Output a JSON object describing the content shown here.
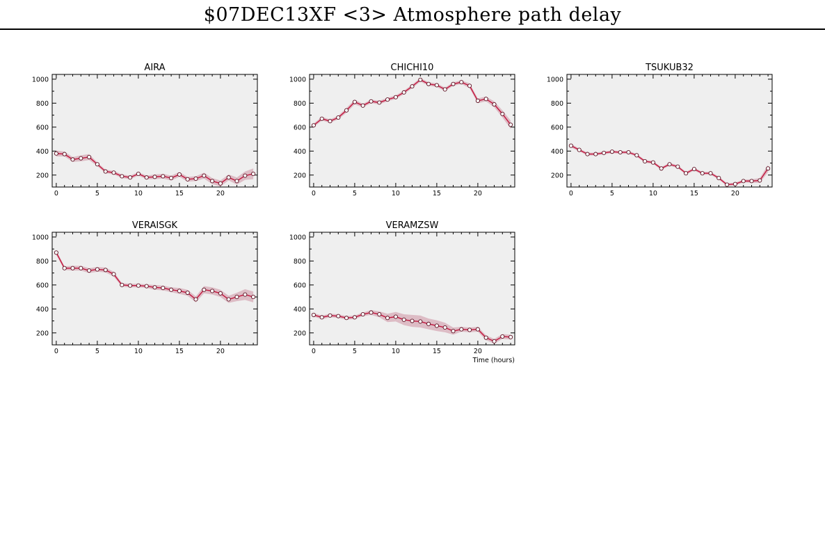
{
  "page": {
    "title": "$07DEC13XF <3>  Atmosphere path delay"
  },
  "chart_data": [
    {
      "type": "line",
      "title": "AIRA",
      "xlabel": "",
      "ylabel": "",
      "xlim": [
        -0.5,
        24.5
      ],
      "ylim": [
        100,
        1040
      ],
      "xticks": [
        0,
        5,
        10,
        15,
        20
      ],
      "yticks": [
        200,
        400,
        600,
        800,
        1000
      ],
      "series": [
        {
          "x": [
            0,
            1,
            2,
            3,
            4,
            5,
            6,
            7,
            8,
            9,
            10,
            11,
            12,
            13,
            14,
            15,
            16,
            17,
            18,
            19,
            20,
            21,
            22,
            23,
            24
          ],
          "values": [
            380,
            375,
            330,
            340,
            350,
            290,
            230,
            220,
            190,
            180,
            210,
            180,
            185,
            190,
            175,
            205,
            165,
            170,
            195,
            150,
            130,
            180,
            150,
            195,
            210
          ],
          "band": [
            25,
            20,
            20,
            25,
            25,
            15,
            15,
            15,
            15,
            15,
            15,
            15,
            20,
            20,
            20,
            20,
            20,
            20,
            25,
            25,
            25,
            25,
            30,
            35,
            45
          ]
        }
      ]
    },
    {
      "type": "line",
      "title": "CHICHI10",
      "xlabel": "",
      "ylabel": "",
      "xlim": [
        -0.5,
        24.5
      ],
      "ylim": [
        100,
        1040
      ],
      "xticks": [
        0,
        5,
        10,
        15,
        20
      ],
      "yticks": [
        200,
        400,
        600,
        800,
        1000
      ],
      "series": [
        {
          "x": [
            0,
            1,
            2,
            3,
            4,
            5,
            6,
            7,
            8,
            9,
            10,
            11,
            12,
            13,
            14,
            15,
            16,
            17,
            18,
            19,
            20,
            21,
            22,
            23,
            24
          ],
          "values": [
            615,
            670,
            650,
            680,
            740,
            810,
            780,
            815,
            805,
            830,
            850,
            890,
            940,
            995,
            960,
            950,
            915,
            960,
            975,
            945,
            820,
            835,
            790,
            710,
            620
          ],
          "band": [
            15,
            15,
            15,
            15,
            20,
            20,
            15,
            15,
            15,
            15,
            15,
            15,
            15,
            15,
            15,
            15,
            15,
            15,
            15,
            20,
            20,
            20,
            25,
            30,
            35
          ]
        }
      ]
    },
    {
      "type": "line",
      "title": "TSUKUB32",
      "xlabel": "",
      "ylabel": "",
      "xlim": [
        -0.5,
        24.5
      ],
      "ylim": [
        100,
        1040
      ],
      "xticks": [
        0,
        5,
        10,
        15,
        20
      ],
      "yticks": [
        200,
        400,
        600,
        800,
        1000
      ],
      "series": [
        {
          "x": [
            0,
            1,
            2,
            3,
            4,
            5,
            6,
            7,
            8,
            9,
            10,
            11,
            12,
            13,
            14,
            15,
            16,
            17,
            18,
            19,
            20,
            21,
            22,
            23,
            24
          ],
          "values": [
            445,
            410,
            375,
            375,
            385,
            395,
            390,
            390,
            365,
            315,
            305,
            255,
            290,
            270,
            215,
            250,
            215,
            215,
            175,
            120,
            125,
            150,
            150,
            155,
            255
          ],
          "band": [
            15,
            12,
            12,
            12,
            12,
            12,
            12,
            12,
            12,
            12,
            12,
            12,
            12,
            12,
            12,
            12,
            12,
            12,
            12,
            12,
            12,
            12,
            15,
            20,
            30
          ]
        }
      ]
    },
    {
      "type": "line",
      "title": "VERAISGK",
      "xlabel": "",
      "ylabel": "",
      "xlim": [
        -0.5,
        24.5
      ],
      "ylim": [
        100,
        1040
      ],
      "xticks": [
        0,
        5,
        10,
        15,
        20
      ],
      "yticks": [
        200,
        400,
        600,
        800,
        1000
      ],
      "series": [
        {
          "x": [
            0,
            1,
            2,
            3,
            4,
            5,
            6,
            7,
            8,
            9,
            10,
            11,
            12,
            13,
            14,
            15,
            16,
            17,
            18,
            19,
            20,
            21,
            22,
            23,
            24
          ],
          "values": [
            870,
            740,
            740,
            740,
            720,
            730,
            725,
            690,
            600,
            595,
            595,
            590,
            580,
            575,
            560,
            550,
            535,
            480,
            560,
            550,
            530,
            480,
            500,
            520,
            500
          ],
          "band": [
            20,
            15,
            20,
            20,
            20,
            20,
            20,
            20,
            15,
            15,
            15,
            15,
            20,
            20,
            20,
            25,
            25,
            25,
            30,
            30,
            30,
            30,
            35,
            45,
            45
          ]
        }
      ]
    },
    {
      "type": "line",
      "title": "VERAMZSW",
      "xlabel": "Time (hours)",
      "ylabel": "",
      "xlim": [
        -0.5,
        24.5
      ],
      "ylim": [
        100,
        1040
      ],
      "xticks": [
        0,
        5,
        10,
        15,
        20
      ],
      "yticks": [
        200,
        400,
        600,
        800,
        1000
      ],
      "series": [
        {
          "x": [
            0,
            1,
            2,
            3,
            4,
            5,
            6,
            7,
            8,
            9,
            10,
            11,
            12,
            13,
            14,
            15,
            16,
            17,
            18,
            19,
            20,
            21,
            22,
            23,
            24
          ],
          "values": [
            350,
            330,
            345,
            340,
            325,
            330,
            355,
            370,
            355,
            325,
            335,
            310,
            300,
            295,
            275,
            260,
            245,
            215,
            230,
            225,
            230,
            160,
            130,
            170,
            165
          ],
          "band": [
            15,
            15,
            15,
            15,
            15,
            15,
            15,
            20,
            25,
            35,
            40,
            45,
            50,
            50,
            45,
            45,
            40,
            30,
            20,
            20,
            20,
            20,
            20,
            20,
            20
          ]
        }
      ]
    }
  ]
}
